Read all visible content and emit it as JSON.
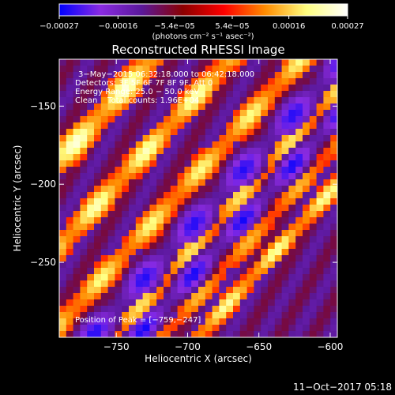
{
  "chart_data": {
    "type": "heatmap",
    "title": "Reconstructed RHESSI Image",
    "xlabel": "Heliocentric X (arcsec)",
    "ylabel": "Heliocentric Y (arcsec)",
    "xlim": [
      -790,
      -595
    ],
    "ylim": [
      -298,
      -120
    ],
    "xticks": [
      -750,
      -700,
      -650,
      -600
    ],
    "yticks": [
      -150,
      -200,
      -250
    ],
    "xtick_labels": [
      "−750",
      "−700",
      "−650",
      "−600"
    ],
    "ytick_labels": [
      "−150",
      "−200",
      "−250"
    ],
    "grid": false,
    "colorbar": {
      "range": [
        -0.00027,
        0.00027
      ],
      "ticks": [
        -0.00027,
        -0.00016,
        -5.4e-05,
        5.4e-05,
        0.00016,
        0.00027
      ],
      "tick_labels": [
        "−0.00027",
        "−0.00016",
        "−5.4e−05",
        "5.4e−05",
        "0.00016",
        "0.00027"
      ],
      "unit_label": "(photons cm⁻² s⁻¹ asec⁻²)",
      "colors": [
        "#0000ff",
        "#8a2be2",
        "#5a189a",
        "#8b0000",
        "#ff0000",
        "#ff8c00",
        "#ffff80",
        "#ffffff"
      ]
    },
    "annotations": {
      "time_range": "3−May−2015 06:32:18.000 to 06:42:18.000",
      "detectors": "Detectors: 3F 5F 6F 7F 8F 9F, Att 0",
      "energy_range": "Energy Range: 25.0 − 50.0 keV",
      "method_counts": "Clean    Total counts: 1.96E+04",
      "peak_position": "Position of Peak = [−759,−247]"
    },
    "peak": [
      -759,
      -247
    ],
    "grid_size": [
      40,
      44
    ],
    "bands": [
      {
        "value": 0.00025,
        "intercept": 605,
        "width": 9
      },
      {
        "value": 0.00023,
        "intercept": 550,
        "width": 8
      },
      {
        "value": 0.0002,
        "intercept": 500,
        "width": 8
      },
      {
        "value": 0.00018,
        "intercept": 455,
        "width": 8
      },
      {
        "value": 0.00015,
        "intercept": 420,
        "width": 7
      },
      {
        "value": 0.00022,
        "intercept": 395,
        "width": 6
      },
      {
        "value": -0.00025,
        "intercept": 470,
        "width": 12
      },
      {
        "value": -0.00026,
        "intercept": 438,
        "width": 9
      }
    ],
    "background_value": -0.0001
  },
  "footer": {
    "timestamp": "11−Oct−2017 05:18"
  }
}
